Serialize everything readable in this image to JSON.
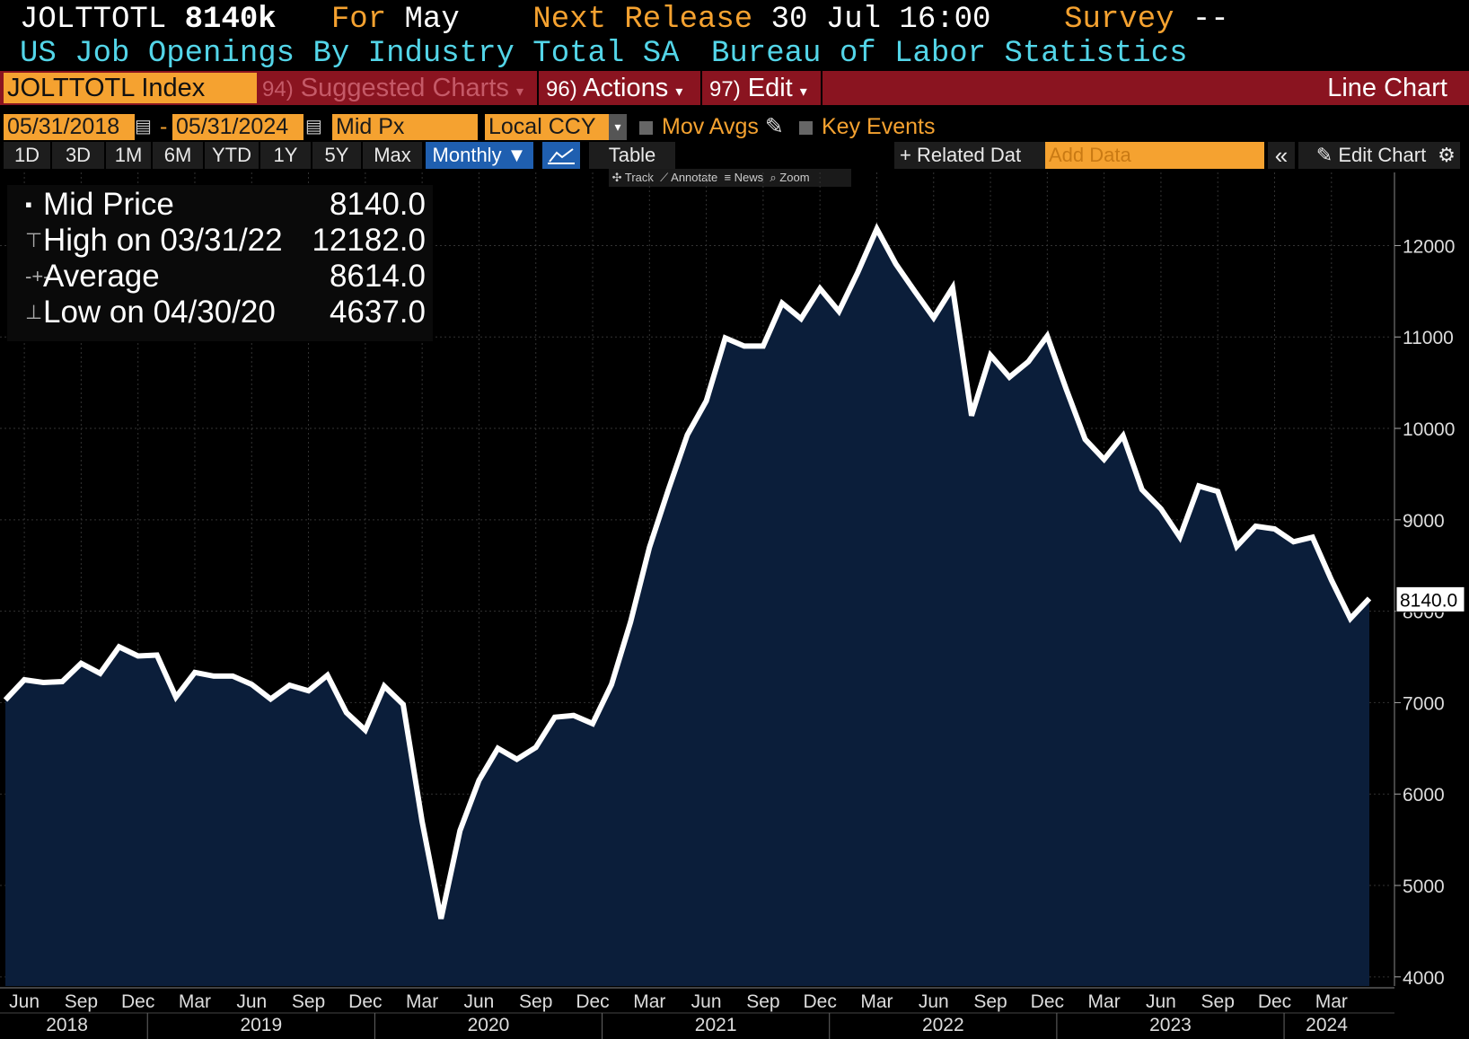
{
  "header": {
    "ticker": "JOLTTOTL",
    "last": "8140k",
    "for_label": "For",
    "for_value": "May",
    "release_label": "Next Release",
    "release_value": "30 Jul 16:00",
    "survey_label": "Survey",
    "survey_value": "--",
    "description": "US Job Openings By Industry Total SA",
    "source": "Bureau of Labor Statistics"
  },
  "toolbar": {
    "security": "JOLTTOTL Index",
    "suggested_num": "94)",
    "suggested": "Suggested Charts",
    "actions_num": "96)",
    "actions": "Actions",
    "edit_num": "97)",
    "edit": "Edit",
    "chart_type": "Line Chart"
  },
  "controls": {
    "start_date": "05/31/2018",
    "dash": "-",
    "end_date": "05/31/2024",
    "field": "Mid Px",
    "currency": "Local CCY",
    "mov_avgs": "Mov Avgs",
    "key_events": "Key Events",
    "periods": [
      "1D",
      "3D",
      "1M",
      "6M",
      "YTD",
      "1Y",
      "5Y",
      "Max"
    ],
    "frequency": "Monthly ▼",
    "table": "Table",
    "related": "+ Related Dat",
    "add_data_placeholder": "Add Data",
    "collapse": "«",
    "edit_chart": "Edit Chart",
    "tools": [
      "Track",
      "Annotate",
      "News",
      "Zoom"
    ]
  },
  "legend": {
    "mid_label": "Mid Price",
    "mid_value": "8140.0",
    "high_label": "High on 03/31/22",
    "high_value": "12182.0",
    "avg_label": "Average",
    "avg_value": "8614.0",
    "low_label": "Low on 04/30/20",
    "low_value": "4637.0"
  },
  "colors": {
    "line": "#ffffff",
    "fill": "#0b1e3a",
    "accent": "#f5a230",
    "bar": "#8a1420",
    "cyan": "#53d5e8"
  },
  "chart_data": {
    "type": "area",
    "title": "US Job Openings By Industry Total SA",
    "ylabel": "",
    "ylim": [
      3900,
      12800
    ],
    "yticks": [
      4000,
      5000,
      6000,
      7000,
      8000,
      9000,
      10000,
      11000,
      12000
    ],
    "last_value_label": "8140.0",
    "x_month_labels": [
      "Jun",
      "Sep",
      "Dec",
      "Mar",
      "Jun",
      "Sep",
      "Dec",
      "Mar",
      "Jun",
      "Sep",
      "Dec",
      "Mar",
      "Jun",
      "Sep",
      "Dec",
      "Mar",
      "Jun",
      "Sep",
      "Dec",
      "Mar",
      "Jun",
      "Sep",
      "Dec",
      "Mar"
    ],
    "x_year_labels": [
      "2018",
      "2019",
      "2020",
      "2021",
      "2022",
      "2023",
      "2024"
    ],
    "start": "2018-05",
    "values": [
      7030,
      7250,
      7220,
      7230,
      7430,
      7320,
      7610,
      7510,
      7520,
      7060,
      7330,
      7290,
      7290,
      7200,
      7040,
      7190,
      7130,
      7300,
      6890,
      6700,
      7180,
      6980,
      5700,
      4637,
      5600,
      6150,
      6500,
      6380,
      6510,
      6840,
      6860,
      6770,
      7200,
      7880,
      8700,
      9330,
      9930,
      10300,
      10990,
      10900,
      10900,
      11370,
      11200,
      11530,
      11280,
      11710,
      12182,
      11800,
      11500,
      11210,
      11540,
      10140,
      10800,
      10560,
      10730,
      11010,
      10430,
      9880,
      9660,
      9920,
      9330,
      9120,
      8810,
      9370,
      9310,
      8710,
      8930,
      8900,
      8760,
      8810,
      8340,
      7920,
      8140
    ]
  }
}
